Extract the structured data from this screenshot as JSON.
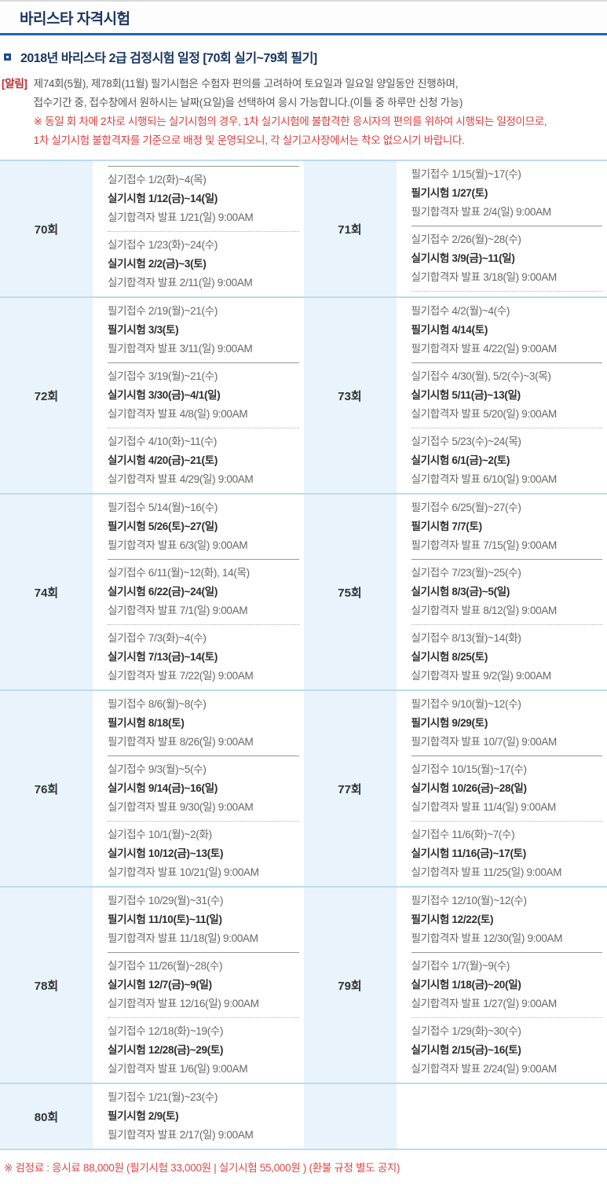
{
  "header": {
    "title": "바리스타 자격시험"
  },
  "section": {
    "title": "2018년 바리스타 2급 검정시험 일정 [70회 실기~79회 필기]"
  },
  "notice": {
    "label": "[알림]",
    "lines": [
      "제74회(5월), 제78회(11월) 필기시험은 수험자 편의를 고려하여 토요일과 일요일 양일동안 진행하며,",
      "접수기간 중, 접수창에서 원하시는 날짜(요일)을 선택하여 응시 가능합니다.(이틀 중 하루만 신청 가능)"
    ],
    "warning_lines": [
      "※ 동일 회 차에 2차로 시행되는 실기시험의 경우, 1차 실기시험에 불합격한 응시자의 편의를 위하여 시행되는 일정이므로,",
      "1차 실기시험 불합격자를 기준으로 배정 및 운영되오니, 각 실기고사장에서는 착오 없으시기 바랍니다."
    ]
  },
  "colors": {
    "title_text": "#1b3763",
    "header_underline": "#1b67b2",
    "notice_label_red": "#c0282b",
    "warning_red": "#e23b3b",
    "row_border_blue": "#bcdcef",
    "round_cell_bg": "#e9f3fb",
    "body_text": "#666666",
    "bold_text": "#2e2e2e",
    "fee_red": "#e34545"
  },
  "schedule": {
    "rows": [
      {
        "cells": [
          {
            "round": "70회",
            "segments": [
              {
                "sep": "solid"
              },
              {
                "lines": [
                  {
                    "t": "실기접수 1/2(화)~4(목)",
                    "b": false
                  },
                  {
                    "t": "실기시험 1/12(금)~14(일)",
                    "b": true
                  },
                  {
                    "t": "실기합격자 발표 1/21(일) 9:00AM",
                    "b": false
                  }
                ]
              },
              {
                "sep": "dotted"
              },
              {
                "lines": [
                  {
                    "t": "실기접수 1/23(화)~24(수)",
                    "b": false
                  },
                  {
                    "t": "실기시험 2/2(금)~3(토)",
                    "b": true
                  },
                  {
                    "t": "실기합격자 발표 2/11(일) 9:00AM",
                    "b": false
                  }
                ]
              }
            ]
          },
          {
            "round": "71회",
            "segments": [
              {
                "lines": [
                  {
                    "t": "필기접수 1/15(월)~17(수)",
                    "b": false
                  },
                  {
                    "t": "필기시험 1/27(토)",
                    "b": true
                  },
                  {
                    "t": "필기합격자 발표 2/4(일) 9:00AM",
                    "b": false
                  }
                ]
              },
              {
                "sep": "solid"
              },
              {
                "lines": [
                  {
                    "t": "실기접수 2/26(월)~28(수)",
                    "b": false
                  },
                  {
                    "t": "실기시험 3/9(금)~11(일)",
                    "b": true
                  },
                  {
                    "t": "실기합격자 발표 3/18(일) 9:00AM",
                    "b": false
                  }
                ]
              },
              {
                "sep": "dotted"
              }
            ]
          }
        ]
      },
      {
        "cells": [
          {
            "round": "72회",
            "segments": [
              {
                "lines": [
                  {
                    "t": "필기접수 2/19(월)~21(수)",
                    "b": false
                  },
                  {
                    "t": "필기시험 3/3(토)",
                    "b": true
                  },
                  {
                    "t": "필기합격자 발표 3/11(일) 9:00AM",
                    "b": false
                  }
                ]
              },
              {
                "sep": "solid"
              },
              {
                "lines": [
                  {
                    "t": "실기접수 3/19(월)~21(수)",
                    "b": false
                  },
                  {
                    "t": "실기시험 3/30(금)~4/1(일)",
                    "b": true
                  },
                  {
                    "t": "실기합격자 발표 4/8(일) 9:00AM",
                    "b": false
                  }
                ]
              },
              {
                "sep": "dotted"
              },
              {
                "lines": [
                  {
                    "t": "실기접수 4/10(화)~11(수)",
                    "b": false
                  },
                  {
                    "t": "실기시험 4/20(금)~21(토)",
                    "b": true
                  },
                  {
                    "t": "실기합격자 발표 4/29(일) 9:00AM",
                    "b": false
                  }
                ]
              }
            ]
          },
          {
            "round": "73회",
            "segments": [
              {
                "lines": [
                  {
                    "t": "필기접수 4/2(월)~4(수)",
                    "b": false
                  },
                  {
                    "t": "필기시험 4/14(토)",
                    "b": true
                  },
                  {
                    "t": "필기합격자 발표 4/22(일) 9:00AM",
                    "b": false
                  }
                ]
              },
              {
                "sep": "solid"
              },
              {
                "lines": [
                  {
                    "t": "실기접수 4/30(월), 5/2(수)~3(목)",
                    "b": false
                  },
                  {
                    "t": "실기시험 5/11(금)~13(일)",
                    "b": true
                  },
                  {
                    "t": "실기합격자 발표 5/20(일) 9:00AM",
                    "b": false
                  }
                ]
              },
              {
                "sep": "dotted"
              },
              {
                "lines": [
                  {
                    "t": "실기접수 5/23(수)~24(목)",
                    "b": false
                  },
                  {
                    "t": "실기시험 6/1(금)~2(토)",
                    "b": true
                  },
                  {
                    "t": "실기합격자 발표 6/10(일) 9:00AM",
                    "b": false
                  }
                ]
              }
            ]
          }
        ]
      },
      {
        "cells": [
          {
            "round": "74회",
            "segments": [
              {
                "lines": [
                  {
                    "t": "필기접수 5/14(월)~16(수)",
                    "b": false
                  },
                  {
                    "t": "필기시험 5/26(토)~27(일)",
                    "b": true
                  },
                  {
                    "t": "필기합격자 발표 6/3(일) 9:00AM",
                    "b": false
                  }
                ]
              },
              {
                "sep": "solid"
              },
              {
                "lines": [
                  {
                    "t": "실기접수 6/11(월)~12(화), 14(목)",
                    "b": false
                  },
                  {
                    "t": "실기시험 6/22(금)~24(일)",
                    "b": true
                  },
                  {
                    "t": "실기합격자 발표 7/1(일) 9:00AM",
                    "b": false
                  }
                ]
              },
              {
                "sep": "dotted"
              },
              {
                "lines": [
                  {
                    "t": "실기접수 7/3(화)~4(수)",
                    "b": false
                  },
                  {
                    "t": "실기시험 7/13(금)~14(토)",
                    "b": true
                  },
                  {
                    "t": "실기합격자 발표 7/22(일) 9:00AM",
                    "b": false
                  }
                ]
              }
            ]
          },
          {
            "round": "75회",
            "segments": [
              {
                "lines": [
                  {
                    "t": "필기접수 6/25(월)~27(수)",
                    "b": false
                  },
                  {
                    "t": "필기시험 7/7(토)",
                    "b": true
                  },
                  {
                    "t": "필기합격자 발표 7/15(일) 9:00AM",
                    "b": false
                  }
                ]
              },
              {
                "sep": "solid"
              },
              {
                "lines": [
                  {
                    "t": "실기접수 7/23(월)~25(수)",
                    "b": false
                  },
                  {
                    "t": "실기시험 8/3(금)~5(일)",
                    "b": true
                  },
                  {
                    "t": "실기합격자 발표 8/12(일) 9:00AM",
                    "b": false
                  }
                ]
              },
              {
                "sep": "dotted"
              },
              {
                "lines": [
                  {
                    "t": "실기접수 8/13(월)~14(화)",
                    "b": false
                  },
                  {
                    "t": "실기시험 8/25(토)",
                    "b": true
                  },
                  {
                    "t": "실기합격자 발표 9/2(일) 9:00AM",
                    "b": false
                  }
                ]
              }
            ]
          }
        ]
      },
      {
        "cells": [
          {
            "round": "76회",
            "segments": [
              {
                "lines": [
                  {
                    "t": "필기접수 8/6(월)~8(수)",
                    "b": false
                  },
                  {
                    "t": "필기시험 8/18(토)",
                    "b": true
                  },
                  {
                    "t": "필기합격자 발표 8/26(일) 9:00AM",
                    "b": false
                  }
                ]
              },
              {
                "sep": "solid"
              },
              {
                "lines": [
                  {
                    "t": "실기접수 9/3(월)~5(수)",
                    "b": false
                  },
                  {
                    "t": "실기시험 9/14(금)~16(일)",
                    "b": true
                  },
                  {
                    "t": "실기합격자 발표 9/30(일) 9:00AM",
                    "b": false
                  }
                ]
              },
              {
                "sep": "dotted"
              },
              {
                "lines": [
                  {
                    "t": "실기접수 10/1(월)~2(화)",
                    "b": false
                  },
                  {
                    "t": "실기시험 10/12(금)~13(토)",
                    "b": true
                  },
                  {
                    "t": "실기합격자 발표 10/21(일) 9:00AM",
                    "b": false
                  }
                ]
              }
            ]
          },
          {
            "round": "77회",
            "segments": [
              {
                "lines": [
                  {
                    "t": "필기접수 9/10(월)~12(수)",
                    "b": false
                  },
                  {
                    "t": "필기시험 9/29(토)",
                    "b": true
                  },
                  {
                    "t": "필기합격자 발표 10/7(일) 9:00AM",
                    "b": false
                  }
                ]
              },
              {
                "sep": "solid"
              },
              {
                "lines": [
                  {
                    "t": "실기접수 10/15(월)~17(수)",
                    "b": false
                  },
                  {
                    "t": "실기시험 10/26(금)~28(일)",
                    "b": true
                  },
                  {
                    "t": "실기합격자 발표 11/4(일) 9:00AM",
                    "b": false
                  }
                ]
              },
              {
                "sep": "dotted"
              },
              {
                "lines": [
                  {
                    "t": "실기접수 11/6(화)~7(수)",
                    "b": false
                  },
                  {
                    "t": "실기시험 11/16(금)~17(토)",
                    "b": true
                  },
                  {
                    "t": "실기합격자 발표 11/25(일) 9:00AM",
                    "b": false
                  }
                ]
              }
            ]
          }
        ]
      },
      {
        "cells": [
          {
            "round": "78회",
            "segments": [
              {
                "lines": [
                  {
                    "t": "필기접수 10/29(월)~31(수)",
                    "b": false
                  },
                  {
                    "t": "필기시험 11/10(토)~11(일)",
                    "b": true
                  },
                  {
                    "t": "필기합격자 발표 11/18(일) 9:00AM",
                    "b": false
                  }
                ]
              },
              {
                "sep": "solid"
              },
              {
                "lines": [
                  {
                    "t": "실기접수 11/26(월)~28(수)",
                    "b": false
                  },
                  {
                    "t": "실기시험 12/7(금)~9(일)",
                    "b": true
                  },
                  {
                    "t": "실기합격자 발표 12/16(일) 9:00AM",
                    "b": false
                  }
                ]
              },
              {
                "sep": "dotted"
              },
              {
                "lines": [
                  {
                    "t": "실기접수 12/18(화)~19(수)",
                    "b": false
                  },
                  {
                    "t": "실기시험 12/28(금)~29(토)",
                    "b": true
                  },
                  {
                    "t": "실기합격자 발표 1/6(일) 9:00AM",
                    "b": false
                  }
                ]
              }
            ]
          },
          {
            "round": "79회",
            "segments": [
              {
                "lines": [
                  {
                    "t": "필기접수 12/10(월)~12(수)",
                    "b": false
                  },
                  {
                    "t": "필기시험 12/22(토)",
                    "b": true
                  },
                  {
                    "t": "필기합격자 발표 12/30(일) 9:00AM",
                    "b": false
                  }
                ]
              },
              {
                "sep": "solid"
              },
              {
                "lines": [
                  {
                    "t": "실기접수 1/7(월)~9(수)",
                    "b": false
                  },
                  {
                    "t": "실기시험 1/18(금)~20(일)",
                    "b": true
                  },
                  {
                    "t": "실기합격자 발표 1/27(일) 9:00AM",
                    "b": false
                  }
                ]
              },
              {
                "sep": "dotted"
              },
              {
                "lines": [
                  {
                    "t": "실기접수 1/29(화)~30(수)",
                    "b": false
                  },
                  {
                    "t": "실기시험 2/15(금)~16(토)",
                    "b": true
                  },
                  {
                    "t": "실기합격자 발표 2/24(일) 9:00AM",
                    "b": false
                  }
                ]
              }
            ]
          }
        ]
      },
      {
        "cells": [
          {
            "round": "80회",
            "segments": [
              {
                "lines": [
                  {
                    "t": "필기접수 1/21(월)~23(수)",
                    "b": false
                  },
                  {
                    "t": "필기시험 2/9(토)",
                    "b": true
                  },
                  {
                    "t": "필기합격자 발표 2/17(일) 9:00AM",
                    "b": false
                  }
                ]
              }
            ]
          },
          {
            "round": "",
            "segments": []
          }
        ]
      }
    ]
  },
  "footer": {
    "text": "※ 검정료 : 응시료 88,000원 (필기시험 33,000원 | 실기시험 55,000원 ) (환불 규정 별도 공지)"
  }
}
